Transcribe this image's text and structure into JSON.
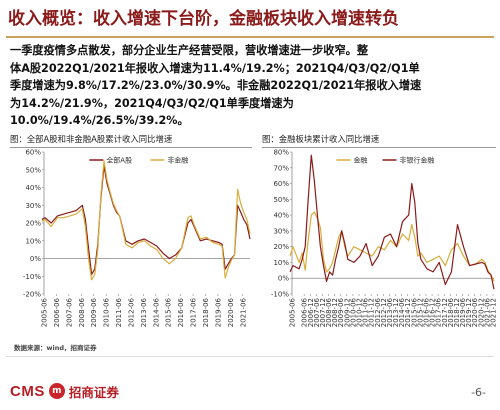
{
  "header": {
    "title": "收入概览：收入增速下台阶，金融板块收入增速转负"
  },
  "summary": {
    "lines": [
      "一季度疫情多点散发，部分企业生产经营受限，营收增速进一步收窄。整",
      "体A股2022Q1/2021年报收入增速为11.4%/19.2%；2021Q4/Q3/Q2/Q1单",
      "季度增速为9.8%/17.2%/23.0%/30.9%。非金融2022Q1/2021年报收入增速",
      "为14.2%/21.9%，2021Q4/Q3/Q2/Q1单季度增速为",
      "10.0%/19.4%/26.5%/39.2%。"
    ]
  },
  "left_panel": {
    "title": "图：全部A股和非金融A股累计收入同比增速"
  },
  "right_panel": {
    "title": "图：金融板块累计收入同比增速"
  },
  "source": "数据来源：wind，招商证券",
  "footer": {
    "logo_en": "CMS",
    "logo_mark": "m",
    "logo_cn": "招商证券",
    "page": "-6-"
  },
  "chart_data": [
    {
      "type": "line",
      "ylim": [
        -20,
        60
      ],
      "yticks": [
        "60%",
        "50%",
        "40%",
        "30%",
        "20%",
        "10%",
        "0%",
        "-10%",
        "-20%"
      ],
      "x": [
        "2005-06",
        "2006-06",
        "2007-06",
        "2008-06",
        "2009-06",
        "2010-06",
        "2011-06",
        "2012-06",
        "2013-06",
        "2014-06",
        "2015-06",
        "2016-06",
        "2017-06",
        "2018-06",
        "2019-06",
        "2020-06",
        "2021-06"
      ],
      "legend_position": "top-center",
      "series": [
        {
          "name": "全部A股",
          "color": "#8b1a1a",
          "points": [
            [
              2005.25,
              22
            ],
            [
              2005.5,
              23
            ],
            [
              2006.0,
              20
            ],
            [
              2006.5,
              24
            ],
            [
              2007.0,
              25
            ],
            [
              2007.5,
              26
            ],
            [
              2008.0,
              27
            ],
            [
              2008.5,
              30
            ],
            [
              2008.75,
              22
            ],
            [
              2009.0,
              6
            ],
            [
              2009.25,
              -9
            ],
            [
              2009.5,
              -6
            ],
            [
              2009.75,
              8
            ],
            [
              2010.0,
              34
            ],
            [
              2010.25,
              52
            ],
            [
              2010.5,
              42
            ],
            [
              2010.75,
              36
            ],
            [
              2011.0,
              30
            ],
            [
              2011.25,
              26
            ],
            [
              2011.5,
              24
            ],
            [
              2012.0,
              10
            ],
            [
              2012.5,
              8
            ],
            [
              2013.0,
              10
            ],
            [
              2013.5,
              11
            ],
            [
              2014.0,
              9
            ],
            [
              2014.5,
              7
            ],
            [
              2015.0,
              3
            ],
            [
              2015.5,
              0
            ],
            [
              2016.0,
              2
            ],
            [
              2016.5,
              6
            ],
            [
              2017.0,
              20
            ],
            [
              2017.25,
              22
            ],
            [
              2017.5,
              18
            ],
            [
              2018.0,
              10
            ],
            [
              2018.5,
              11
            ],
            [
              2019.0,
              10
            ],
            [
              2019.5,
              9
            ],
            [
              2019.75,
              8
            ],
            [
              2020.0,
              -6
            ],
            [
              2020.25,
              -3
            ],
            [
              2020.5,
              0
            ],
            [
              2020.75,
              2
            ],
            [
              2021.0,
              30
            ],
            [
              2021.25,
              26
            ],
            [
              2021.5,
              22
            ],
            [
              2021.75,
              19
            ],
            [
              2022.0,
              11
            ]
          ]
        },
        {
          "name": "非金融",
          "color": "#d8ad3a",
          "points": [
            [
              2005.25,
              21
            ],
            [
              2005.5,
              22
            ],
            [
              2006.0,
              18
            ],
            [
              2006.5,
              23
            ],
            [
              2007.0,
              23
            ],
            [
              2007.5,
              24
            ],
            [
              2008.0,
              25
            ],
            [
              2008.5,
              28
            ],
            [
              2008.75,
              18
            ],
            [
              2009.0,
              0
            ],
            [
              2009.25,
              -12
            ],
            [
              2009.5,
              -9
            ],
            [
              2009.75,
              5
            ],
            [
              2010.0,
              36
            ],
            [
              2010.25,
              55
            ],
            [
              2010.5,
              44
            ],
            [
              2010.75,
              37
            ],
            [
              2011.0,
              31
            ],
            [
              2011.25,
              27
            ],
            [
              2011.5,
              24
            ],
            [
              2012.0,
              8
            ],
            [
              2012.5,
              6
            ],
            [
              2013.0,
              9
            ],
            [
              2013.5,
              10
            ],
            [
              2014.0,
              7
            ],
            [
              2014.5,
              5
            ],
            [
              2015.0,
              0
            ],
            [
              2015.5,
              -3
            ],
            [
              2016.0,
              0
            ],
            [
              2016.5,
              6
            ],
            [
              2017.0,
              23
            ],
            [
              2017.25,
              24
            ],
            [
              2017.5,
              19
            ],
            [
              2018.0,
              11
            ],
            [
              2018.5,
              12
            ],
            [
              2019.0,
              9
            ],
            [
              2019.5,
              8
            ],
            [
              2019.75,
              7
            ],
            [
              2020.0,
              -11
            ],
            [
              2020.25,
              -5
            ],
            [
              2020.5,
              -1
            ],
            [
              2020.75,
              2
            ],
            [
              2021.0,
              39
            ],
            [
              2021.25,
              31
            ],
            [
              2021.5,
              26
            ],
            [
              2021.75,
              22
            ],
            [
              2022.0,
              14
            ]
          ]
        }
      ]
    },
    {
      "type": "line",
      "ylim": [
        -10,
        80
      ],
      "yticks": [
        "80%",
        "70%",
        "60%",
        "50%",
        "40%",
        "30%",
        "20%",
        "10%",
        "0%",
        "-10%"
      ],
      "x": [
        "2005-06",
        "2006-06",
        "2006-12",
        "2007-06",
        "2007-12",
        "2008-06",
        "2008-12",
        "2009-06",
        "2009-12",
        "2010-06",
        "2010-12",
        "2011-06",
        "2011-12",
        "2012-06",
        "2012-12",
        "2013-06",
        "2013-12",
        "2014-06",
        "2014-12",
        "2015-06",
        "2015-12",
        "2016-06",
        "2016-12",
        "2017-06",
        "2017-12",
        "2018-06",
        "2018-12",
        "2019-06",
        "2019-12",
        "2020-06",
        "2020-12",
        "2021-06",
        "2021-12"
      ],
      "legend_position": "top-center",
      "series": [
        {
          "name": "金融",
          "color": "#d8ad3a",
          "points": [
            [
              2005.25,
              14
            ],
            [
              2005.5,
              20
            ],
            [
              2006.0,
              10
            ],
            [
              2006.25,
              16
            ],
            [
              2006.5,
              5
            ],
            [
              2006.75,
              24
            ],
            [
              2007.0,
              40
            ],
            [
              2007.25,
              42
            ],
            [
              2007.5,
              38
            ],
            [
              2007.75,
              32
            ],
            [
              2008.0,
              12
            ],
            [
              2008.25,
              4
            ],
            [
              2008.5,
              6
            ],
            [
              2008.75,
              10
            ],
            [
              2009.0,
              18
            ],
            [
              2009.25,
              26
            ],
            [
              2009.5,
              30
            ],
            [
              2009.75,
              20
            ],
            [
              2010.0,
              14
            ],
            [
              2010.5,
              20
            ],
            [
              2011.0,
              18
            ],
            [
              2011.5,
              16
            ],
            [
              2012.0,
              14
            ],
            [
              2012.5,
              20
            ],
            [
              2013.0,
              18
            ],
            [
              2013.5,
              24
            ],
            [
              2014.0,
              20
            ],
            [
              2014.5,
              28
            ],
            [
              2015.0,
              24
            ],
            [
              2015.25,
              34
            ],
            [
              2015.5,
              26
            ],
            [
              2015.75,
              14
            ],
            [
              2016.0,
              16
            ],
            [
              2016.5,
              10
            ],
            [
              2017.0,
              12
            ],
            [
              2017.5,
              14
            ],
            [
              2018.0,
              8
            ],
            [
              2018.5,
              18
            ],
            [
              2019.0,
              22
            ],
            [
              2019.5,
              14
            ],
            [
              2020.0,
              8
            ],
            [
              2020.5,
              9
            ],
            [
              2021.0,
              12
            ],
            [
              2021.25,
              10
            ],
            [
              2021.5,
              5
            ],
            [
              2021.75,
              2
            ],
            [
              2022.0,
              -2
            ]
          ]
        },
        {
          "name": "非银行金融",
          "color": "#8b1a1a",
          "points": [
            [
              2005.25,
              4
            ],
            [
              2005.5,
              8
            ],
            [
              2006.0,
              6
            ],
            [
              2006.25,
              12
            ],
            [
              2006.5,
              20
            ],
            [
              2006.75,
              50
            ],
            [
              2007.0,
              78
            ],
            [
              2007.25,
              62
            ],
            [
              2007.5,
              40
            ],
            [
              2007.75,
              20
            ],
            [
              2008.0,
              8
            ],
            [
              2008.25,
              -2
            ],
            [
              2008.5,
              4
            ],
            [
              2008.75,
              2
            ],
            [
              2009.0,
              12
            ],
            [
              2009.25,
              20
            ],
            [
              2009.5,
              30
            ],
            [
              2009.75,
              22
            ],
            [
              2010.0,
              12
            ],
            [
              2010.5,
              10
            ],
            [
              2011.0,
              14
            ],
            [
              2011.5,
              22
            ],
            [
              2012.0,
              8
            ],
            [
              2012.5,
              14
            ],
            [
              2013.0,
              26
            ],
            [
              2013.5,
              28
            ],
            [
              2014.0,
              20
            ],
            [
              2014.5,
              36
            ],
            [
              2015.0,
              40
            ],
            [
              2015.25,
              60
            ],
            [
              2015.5,
              48
            ],
            [
              2015.75,
              22
            ],
            [
              2016.0,
              12
            ],
            [
              2016.5,
              6
            ],
            [
              2017.0,
              4
            ],
            [
              2017.5,
              10
            ],
            [
              2018.0,
              -4
            ],
            [
              2018.5,
              4
            ],
            [
              2019.0,
              34
            ],
            [
              2019.5,
              20
            ],
            [
              2020.0,
              8
            ],
            [
              2020.5,
              9
            ],
            [
              2021.0,
              10
            ],
            [
              2021.25,
              9
            ],
            [
              2021.5,
              4
            ],
            [
              2021.75,
              2
            ],
            [
              2022.0,
              -7
            ]
          ]
        }
      ]
    }
  ]
}
